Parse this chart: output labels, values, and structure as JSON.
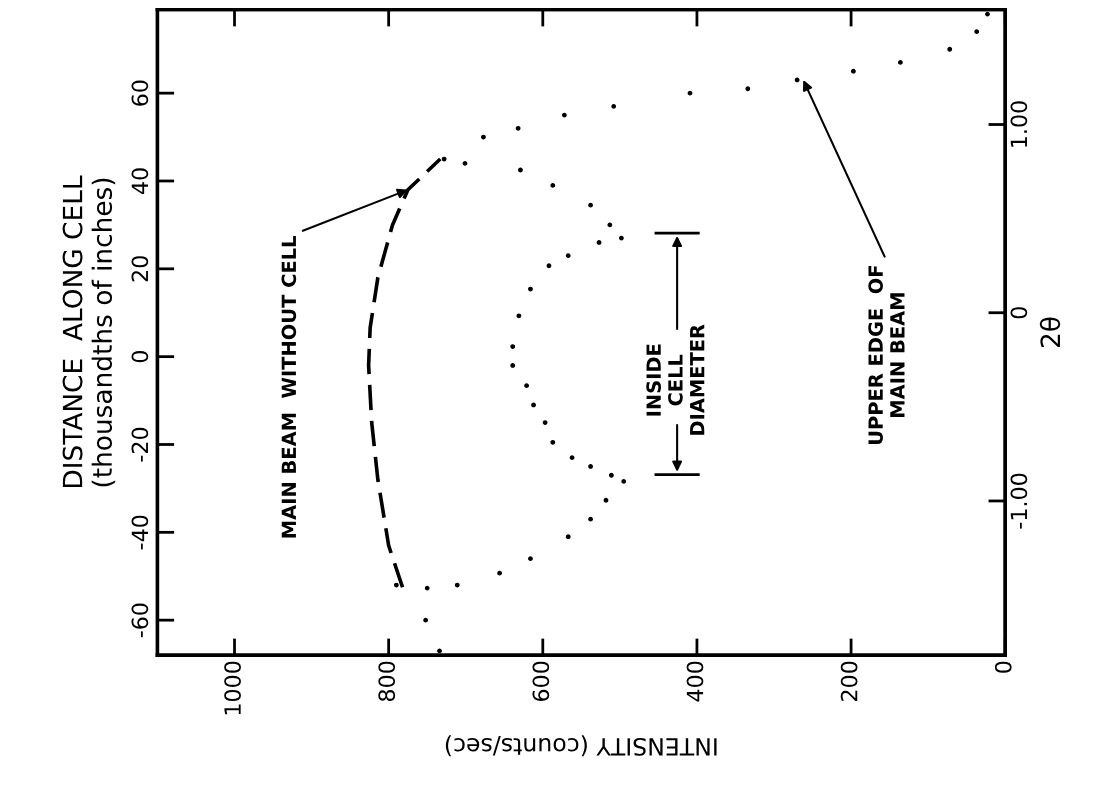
{
  "chart_data": {
    "type": "scatter",
    "xlabel": "INTENSITY (counts/sec)",
    "ylabel": "DISTANCE  ALONG CELL\n(thousandths of inches)",
    "y2label": "2θ",
    "xlim": [
      1100,
      0
    ],
    "xticks": [
      {
        "value": 1000,
        "label": "1000"
      },
      800,
      600,
      400,
      200,
      0
    ],
    "ylim": [
      -68,
      79
    ],
    "yticks": [
      -60,
      -40,
      -20,
      0,
      20,
      40,
      60
    ],
    "y2lim": [
      -1.82,
      1.61
    ],
    "y2ticks": [
      {
        "value": -1,
        "label": "-1.00"
      },
      0,
      {
        "value": 1,
        "label": "1.00"
      }
    ],
    "grid": false,
    "series": [
      {
        "type": "line",
        "line_style": "dashed",
        "color": "#000000",
        "x": [
          782,
          800,
          814,
          822,
          826,
          824,
          814,
          795,
          775,
          733
        ],
        "values": [
          -52.5,
          -43,
          -28,
          -15,
          -2,
          6.6,
          18,
          30,
          38,
          45
        ]
      },
      {
        "marker": "circle",
        "color": "#000000",
        "x": [
          734,
          752,
          790,
          750,
          711,
          656,
          616,
          567,
          538,
          518,
          495,
          511,
          538,
          562,
          587,
          597,
          612,
          621,
          639,
          639,
          631,
          616,
          592,
          567,
          527,
          498,
          513,
          538,
          587,
          629,
          701
        ],
        "values": [
          -67,
          -60,
          -52,
          -52.7,
          -52,
          -49.3,
          -46,
          -41,
          -37,
          -32.7,
          -28.4,
          -27,
          -25,
          -23,
          -19.5,
          -15,
          -11,
          -6.6,
          -2,
          2.3,
          9.3,
          15.4,
          20.7,
          23,
          26,
          27,
          30,
          34.5,
          39,
          42.5,
          44
        ]
      },
      {
        "marker": "circle",
        "color": "#000000",
        "x": [
          728,
          677,
          632,
          572,
          508,
          409,
          334,
          270,
          197,
          136,
          72,
          37,
          23
        ],
        "values": [
          45,
          50,
          52,
          55,
          57,
          60,
          61,
          63,
          65,
          67,
          70,
          74,
          78
        ]
      }
    ],
    "annotations": [
      {
        "text": "MAIN BEAM  WITHOUT CELL",
        "x": 775,
        "y": 38
      },
      "INSIDE\nCELL\nDIAMETER",
      {
        "text": "UPPER EDGE  OF\nMAIN BEAM",
        "x": 262,
        "y": 63
      }
    ]
  }
}
